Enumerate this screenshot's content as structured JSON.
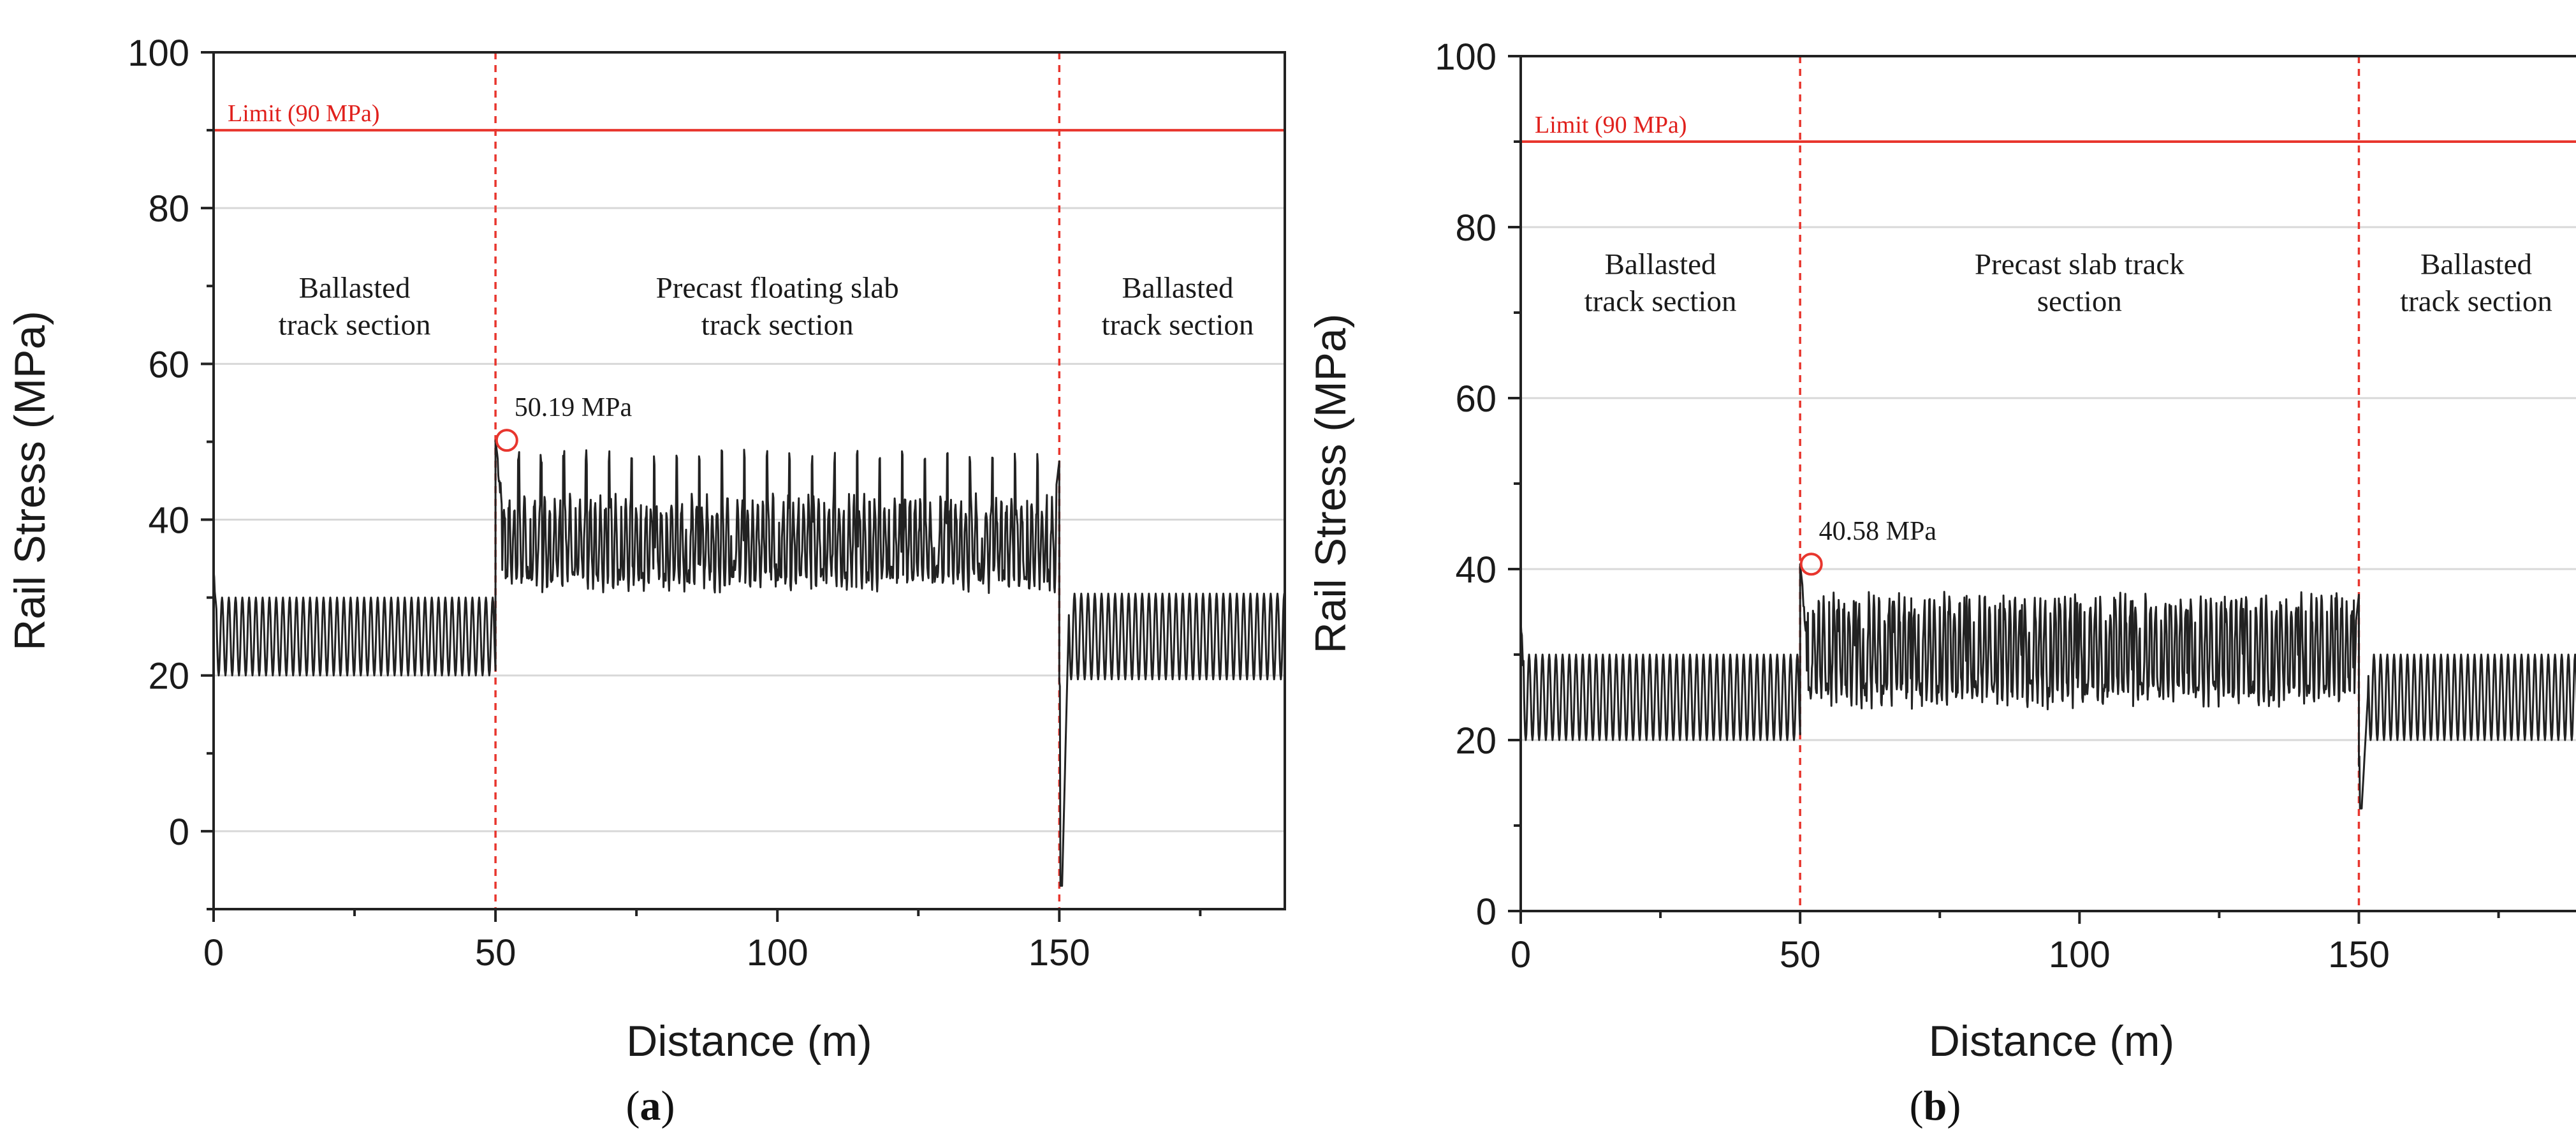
{
  "chart_data": [
    {
      "type": "line",
      "panel_label": "a",
      "xlabel": "Distance (m)",
      "ylabel": "Rail Stress (MPa)",
      "xlim": [
        0,
        190
      ],
      "ylim": [
        -10,
        100
      ],
      "xticks": [
        0,
        50,
        100,
        150
      ],
      "yticks": [
        0,
        20,
        40,
        60,
        80,
        100
      ],
      "grid": "horizontal",
      "limit": {
        "value": 90,
        "label": "Limit (90 MPa)",
        "color": "#e8362e"
      },
      "section_boundaries": [
        50,
        150
      ],
      "section_labels": [
        {
          "lines": [
            "Ballasted",
            "track section"
          ],
          "x": 25,
          "y": 68.5
        },
        {
          "lines": [
            "Precast floating slab",
            "track section"
          ],
          "x": 100,
          "y": 68.5
        },
        {
          "lines": [
            "Ballasted",
            "track section"
          ],
          "x": 171,
          "y": 68.5
        }
      ],
      "peak": {
        "x": 52,
        "y": 50.19,
        "label": "50.19 MPa"
      },
      "segments": [
        {
          "x_start": 0,
          "x_end": 50,
          "base": 25,
          "amplitude": 5,
          "period": 1.2,
          "start_spike": 33.5
        },
        {
          "x_start": 50,
          "x_end": 150,
          "trough": 32,
          "upper": 42,
          "spike_period": 4,
          "spike_peak": 49,
          "start_peak": 50.19,
          "end_peak": 47.5
        },
        {
          "x_start": 150,
          "x_end": 190,
          "base": 25,
          "amplitude": 5.5,
          "period": 1.2,
          "dip": -7
        }
      ],
      "line_color": "#222222"
    },
    {
      "type": "line",
      "panel_label": "b",
      "xlabel": "Distance (m)",
      "ylabel": "Rail Stress (MPa)",
      "xlim": [
        0,
        190
      ],
      "ylim": [
        0,
        100
      ],
      "xticks": [
        0,
        50,
        100,
        150
      ],
      "yticks": [
        0,
        20,
        40,
        60,
        80,
        100
      ],
      "grid": "horizontal",
      "limit": {
        "value": 90,
        "label": "Limit (90 MPa)",
        "color": "#e8362e"
      },
      "section_boundaries": [
        50,
        150
      ],
      "section_labels": [
        {
          "lines": [
            "Ballasted",
            "track section"
          ],
          "x": 25,
          "y": 74.5
        },
        {
          "lines": [
            "Precast slab track",
            "section"
          ],
          "x": 100,
          "y": 74.5
        },
        {
          "lines": [
            "Ballasted",
            "track section"
          ],
          "x": 171,
          "y": 74.5
        }
      ],
      "peak": {
        "x": 52,
        "y": 40.58,
        "label": "40.58 MPa"
      },
      "segments": [
        {
          "x_start": 0,
          "x_end": 50,
          "base": 25,
          "amplitude": 5,
          "period": 1.2,
          "start_spike": 33.5
        },
        {
          "x_start": 50,
          "x_end": 150,
          "trough": 25,
          "upper": 36,
          "spike_period": 3.3,
          "spike_peak": 37,
          "start_peak": 40.58,
          "end_peak": 37
        },
        {
          "x_start": 150,
          "x_end": 190,
          "base": 25,
          "amplitude": 5,
          "period": 1.2,
          "dip": 12
        }
      ],
      "line_color": "#222222"
    }
  ]
}
